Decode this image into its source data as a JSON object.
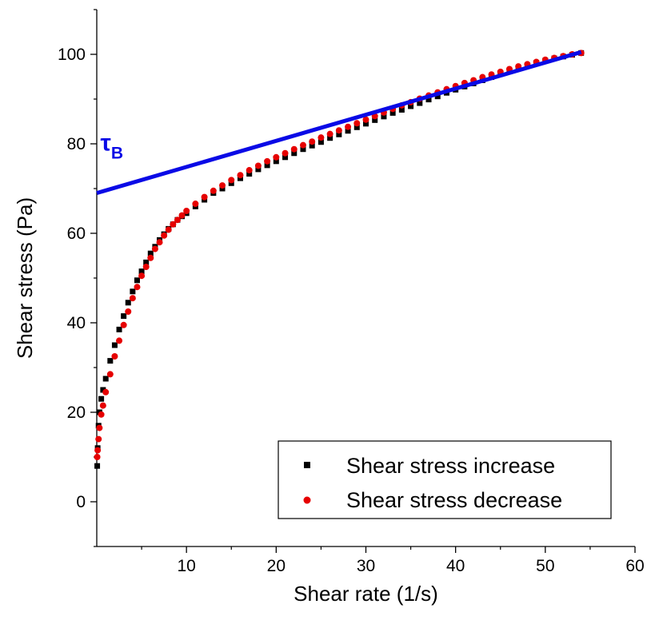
{
  "chart_data": {
    "type": "scatter",
    "xlabel": "Shear rate (1/s)",
    "ylabel": "Shear stress (Pa)",
    "xlim": [
      0,
      60
    ],
    "ylim": [
      -10,
      110
    ],
    "x_ticks": [
      10,
      20,
      30,
      40,
      50,
      60
    ],
    "y_ticks": [
      0,
      20,
      40,
      60,
      80,
      100
    ],
    "grid": false,
    "legend_position": "bottom-right",
    "series": [
      {
        "name": "Shear stress increase",
        "marker": "square",
        "color": "#000000",
        "x": [
          0.05,
          0.1,
          0.2,
          0.3,
          0.5,
          0.7,
          1.0,
          1.5,
          2.0,
          2.5,
          3.0,
          3.5,
          4.0,
          4.5,
          5.0,
          5.5,
          6.0,
          6.5,
          7.0,
          7.5,
          8.0,
          8.5,
          9.0,
          9.5,
          10.0,
          11.0,
          12.0,
          13.0,
          14.0,
          15.0,
          16.0,
          17.0,
          18.0,
          19.0,
          20.0,
          21.0,
          22.0,
          23.0,
          24.0,
          25.0,
          26.0,
          27.0,
          28.0,
          29.0,
          30.0,
          31.0,
          32.0,
          33.0,
          34.0,
          35.0,
          36.0,
          37.0,
          38.0,
          39.0,
          40.0,
          41.0,
          42.0,
          43.0,
          44.0,
          45.0,
          46.0,
          47.0,
          48.0,
          49.0,
          50.0,
          51.0,
          52.0,
          53.0,
          54.0
        ],
        "y": [
          8,
          12,
          17,
          20,
          23,
          25,
          27.5,
          31.5,
          35,
          38.5,
          41.5,
          44.5,
          47,
          49.5,
          51.5,
          53.5,
          55.5,
          57,
          58.5,
          59.8,
          61,
          62,
          63,
          63.8,
          64.5,
          66,
          67.5,
          69,
          70,
          71.2,
          72.3,
          73.3,
          74.3,
          75.2,
          76.1,
          77,
          77.9,
          78.8,
          79.6,
          80.4,
          81.3,
          82.1,
          82.9,
          83.7,
          84.5,
          85.3,
          86.1,
          86.9,
          87.6,
          88.4,
          89.1,
          89.9,
          90.6,
          91.4,
          92.1,
          92.8,
          93.5,
          94.2,
          94.9,
          95.6,
          96.2,
          96.9,
          97.5,
          98.1,
          98.6,
          99.1,
          99.5,
          99.9,
          100.3
        ]
      },
      {
        "name": "Shear stress decrease",
        "marker": "circle",
        "color": "#e60000",
        "x": [
          0.05,
          0.1,
          0.2,
          0.3,
          0.5,
          0.7,
          1.0,
          1.5,
          2.0,
          2.5,
          3.0,
          3.5,
          4.0,
          4.5,
          5.0,
          5.5,
          6.0,
          6.5,
          7.0,
          7.5,
          8.0,
          8.5,
          9.0,
          9.5,
          10.0,
          11.0,
          12.0,
          13.0,
          14.0,
          15.0,
          16.0,
          17.0,
          18.0,
          19.0,
          20.0,
          21.0,
          22.0,
          23.0,
          24.0,
          25.0,
          26.0,
          27.0,
          28.0,
          29.0,
          30.0,
          31.0,
          32.0,
          33.0,
          34.0,
          35.0,
          36.0,
          37.0,
          38.0,
          39.0,
          40.0,
          41.0,
          42.0,
          43.0,
          44.0,
          45.0,
          46.0,
          47.0,
          48.0,
          49.0,
          50.0,
          51.0,
          52.0,
          53.0,
          54.0
        ],
        "y": [
          10,
          11.5,
          14,
          16.5,
          19.5,
          21.5,
          24.5,
          28.5,
          32.5,
          36,
          39.5,
          42.5,
          45.5,
          48,
          50.5,
          52.5,
          54.5,
          56.5,
          58,
          59.5,
          60.8,
          62,
          63,
          64,
          65,
          66.6,
          68.1,
          69.5,
          70.7,
          71.9,
          73,
          74.1,
          75.1,
          76.1,
          77,
          77.9,
          78.8,
          79.7,
          80.5,
          81.4,
          82.2,
          83,
          83.8,
          84.6,
          85.4,
          86.2,
          87,
          87.8,
          88.6,
          89.3,
          90.1,
          90.8,
          91.5,
          92.2,
          92.9,
          93.6,
          94.2,
          94.9,
          95.5,
          96.1,
          96.7,
          97.3,
          97.8,
          98.3,
          98.8,
          99.2,
          99.6,
          100,
          100.3
        ]
      },
      {
        "name": "",
        "type": "line",
        "color": "#0a0ae6",
        "x": [
          0,
          54
        ],
        "y": [
          69,
          100.5
        ]
      }
    ],
    "annotation": {
      "text": "τ",
      "subscript": "B",
      "x": 0.4,
      "y": 78.5
    }
  }
}
